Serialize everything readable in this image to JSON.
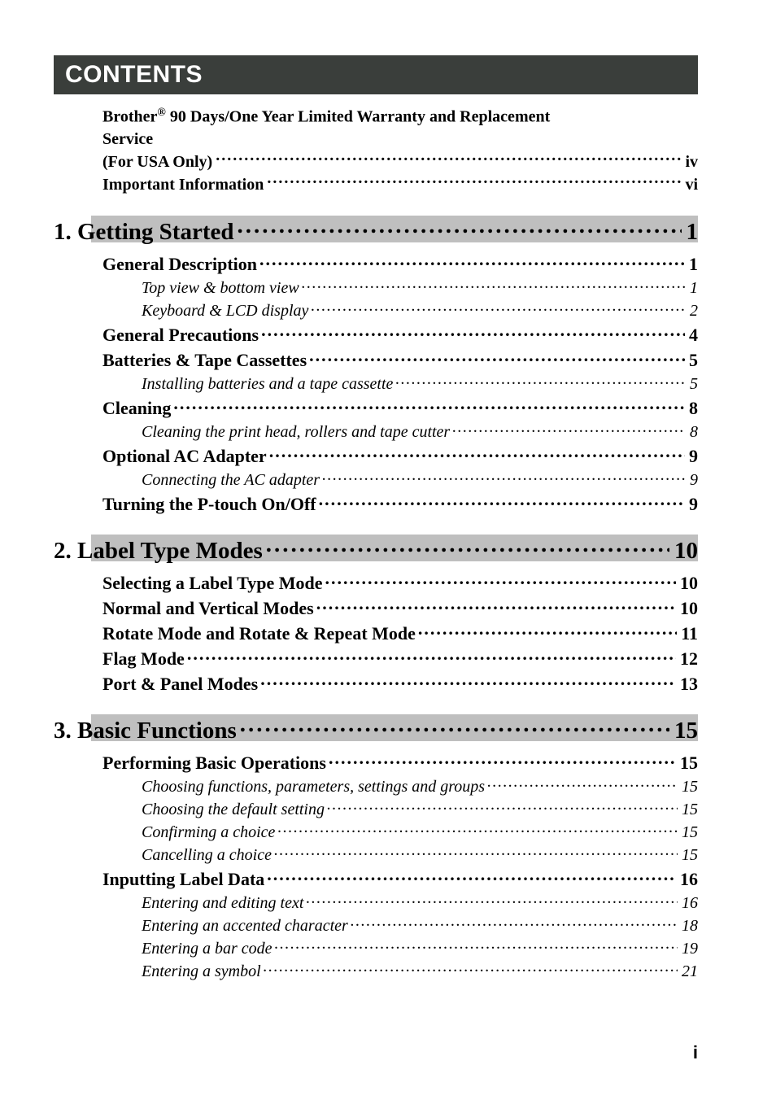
{
  "header": "CONTENTS",
  "pre_entries": [
    {
      "lines": [
        "Brother® 90 Days/One Year Limited Warranty and Replacement",
        "Service",
        "(For USA Only)"
      ],
      "page": "iv"
    },
    {
      "lines": [
        "Important Information"
      ],
      "page": "vi"
    }
  ],
  "chapters": [
    {
      "title": "1. Getting Started",
      "page": "1",
      "sections": [
        {
          "title": "General Description",
          "page": "1",
          "subs": [
            {
              "title": "Top view & bottom view",
              "page": "1"
            },
            {
              "title": "Keyboard & LCD display",
              "page": "2"
            }
          ]
        },
        {
          "title": "General Precautions",
          "page": "4",
          "subs": []
        },
        {
          "title": "Batteries & Tape Cassettes",
          "page": "5",
          "subs": [
            {
              "title": "Installing batteries and a tape cassette",
              "page": "5"
            }
          ]
        },
        {
          "title": "Cleaning",
          "page": "8",
          "subs": [
            {
              "title": "Cleaning the print head, rollers and tape cutter",
              "page": "8"
            }
          ]
        },
        {
          "title": "Optional AC Adapter",
          "page": "9",
          "subs": [
            {
              "title": "Connecting the AC adapter",
              "page": "9"
            }
          ]
        },
        {
          "title": "Turning the P-touch On/Off",
          "page": "9",
          "subs": []
        }
      ]
    },
    {
      "title": "2. Label Type Modes",
      "page": "10",
      "sections": [
        {
          "title": "Selecting a Label Type Mode",
          "page": "10",
          "subs": []
        },
        {
          "title": "Normal and Vertical Modes",
          "page": "10",
          "subs": []
        },
        {
          "title": "Rotate Mode and Rotate & Repeat Mode",
          "page": "11",
          "subs": []
        },
        {
          "title": "Flag Mode",
          "page": "12",
          "subs": []
        },
        {
          "title": "Port & Panel Modes",
          "page": "13",
          "subs": []
        }
      ]
    },
    {
      "title": "3. Basic Functions",
      "page": "15",
      "sections": [
        {
          "title": "Performing Basic Operations",
          "page": "15",
          "subs": [
            {
              "title": "Choosing functions, parameters, settings and groups",
              "page": "15"
            },
            {
              "title": "Choosing the default setting",
              "page": "15"
            },
            {
              "title": "Confirming a choice",
              "page": "15"
            },
            {
              "title": "Cancelling a choice",
              "page": "15"
            }
          ]
        },
        {
          "title": "Inputting Label Data",
          "page": "16",
          "subs": [
            {
              "title": "Entering and editing text",
              "page": "16"
            },
            {
              "title": "Entering an accented character",
              "page": "18"
            },
            {
              "title": "Entering a bar code",
              "page": "19"
            },
            {
              "title": "Entering a symbol",
              "page": "21"
            }
          ]
        }
      ]
    }
  ],
  "footer_page": "i",
  "colors": {
    "header_bg": "#3a3e3b",
    "header_fg": "#ffffff",
    "chapter_bar": "#bfbfbf",
    "text": "#000000",
    "page_bg": "#ffffff"
  }
}
